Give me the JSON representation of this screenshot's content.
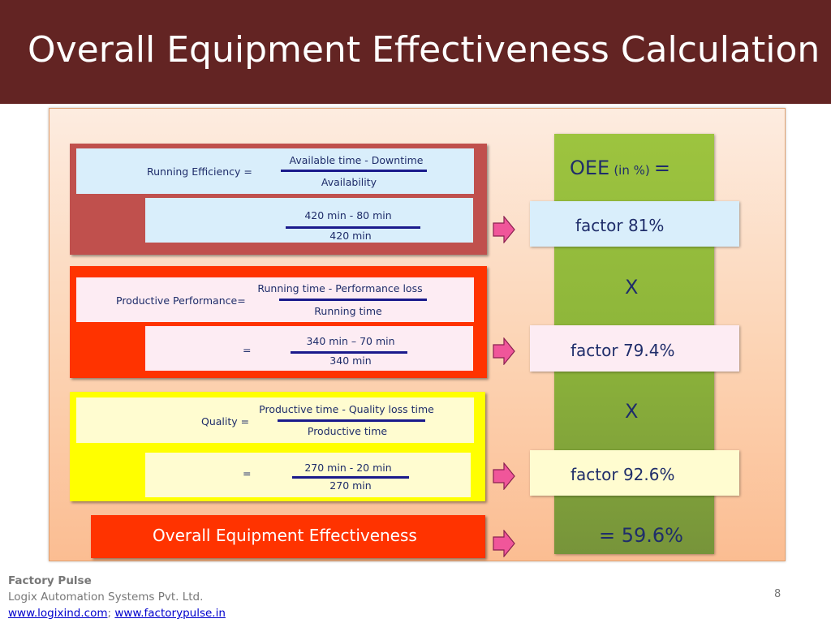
{
  "slide": {
    "title": "Overall Equipment Effectiveness Calculation",
    "page_number": "8"
  },
  "running_efficiency": {
    "label": "Running Efficiency =",
    "numerator": "Available time - Downtime",
    "denominator": "Availability",
    "value_numerator": "420 min - 80 min",
    "value_denominator": "420 min"
  },
  "productive_performance": {
    "label": "Productive  Performance=",
    "numerator": "Running time - Performance loss",
    "denominator": "Running time",
    "equals": "=",
    "value_numerator": "340 min – 70 min",
    "value_denominator": "340 min"
  },
  "quality": {
    "label": "Quality  =",
    "numerator": "Productive time - Quality loss time",
    "denominator": "Productive time",
    "equals": "=",
    "value_numerator": "270 min - 20 min",
    "value_denominator": "270 min"
  },
  "oee_column": {
    "header_main": "OEE",
    "header_unit": "(in %)",
    "header_eq": "=",
    "factor_1": "factor 81%",
    "times_1": "X",
    "factor_2": "factor 79.4%",
    "times_2": "X",
    "factor_3": "factor 92.6%",
    "result": "= 59.6%"
  },
  "result_label": "Overall Equipment Effectiveness",
  "footer": {
    "brand": "Factory Pulse",
    "company": "Logix Automation Systems Pvt. Ltd.",
    "link_1": "www.logixind.com",
    "separator": ";",
    "link_2": "www.factorypulse.in"
  },
  "colors": {
    "title_bar": "#632423",
    "group_1": "#c0504d",
    "group_2": "#ff3300",
    "group_3": "#ffff00",
    "oee_column": "#8db53a",
    "arrow": "#f0569a"
  }
}
